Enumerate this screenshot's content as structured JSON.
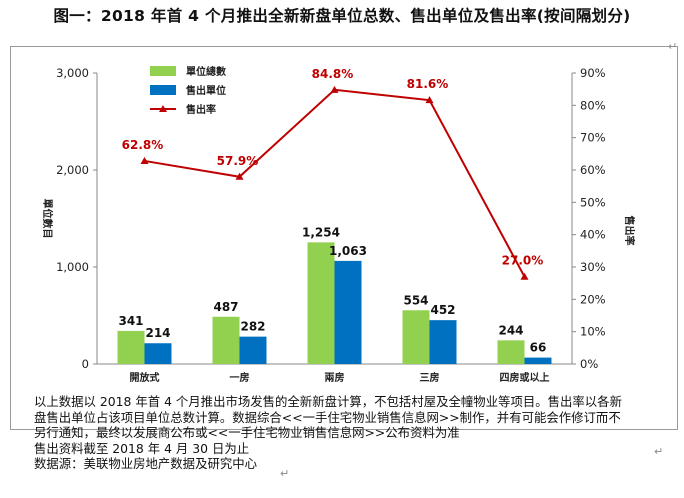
{
  "title": "图一：2018 年首 4 个月推出全新新盘单位总数、售出单位及售出率(按间隔划分)",
  "chart_data": {
    "type": "bar",
    "categories": [
      "開放式",
      "一房",
      "兩房",
      "三房",
      "四房或以上"
    ],
    "series": [
      {
        "name": "單位總數",
        "type": "bar",
        "axis": "left",
        "color": "#92d050",
        "values": [
          341,
          487,
          1254,
          554,
          244
        ],
        "labels": [
          "341",
          "487",
          "1,254",
          "554",
          "244"
        ]
      },
      {
        "name": "售出單位",
        "type": "bar",
        "axis": "left",
        "color": "#0070c0",
        "values": [
          214,
          282,
          1063,
          452,
          66
        ],
        "labels": [
          "214",
          "282",
          "1,063",
          "452",
          "66"
        ]
      },
      {
        "name": "售出率",
        "type": "line",
        "axis": "right",
        "color": "#c00000",
        "values": [
          62.8,
          57.9,
          84.8,
          81.6,
          27.0
        ],
        "labels": [
          "62.8%",
          "57.9%",
          "84.8%",
          "81.6%",
          "27.0%"
        ]
      }
    ],
    "ylabel": "單位數目",
    "y2label": "售出率",
    "ylim": [
      0,
      3000
    ],
    "y2lim": [
      0,
      90
    ],
    "yticks": [
      "0",
      "1,000",
      "2,000",
      "3,000"
    ],
    "y2ticks": [
      "0%",
      "10%",
      "20%",
      "30%",
      "40%",
      "50%",
      "60%",
      "70%",
      "80%",
      "90%"
    ],
    "legend_position": "top-left",
    "grid": false
  },
  "notes": [
    "以上数据以 2018 年首 4 个月推出市场发售的全新新盘计算，不包括村屋及全幢物业等项目。售出率以各新",
    "盘售出单位占该项目单位总数计算。数据综合<<一手住宅物业销售信息网>>制作，并有可能会作修订而不",
    "另行通知，最终以发展商公布或<<一手住宅物业销售信息网>>公布资料为准",
    "售出资料截至 2018 年 4 月 30 日为止",
    "数据源：美联物业房地产数据及研究中心"
  ],
  "colors": {
    "total": "#92d050",
    "sold": "#0070c0",
    "rate": "#c00000"
  }
}
